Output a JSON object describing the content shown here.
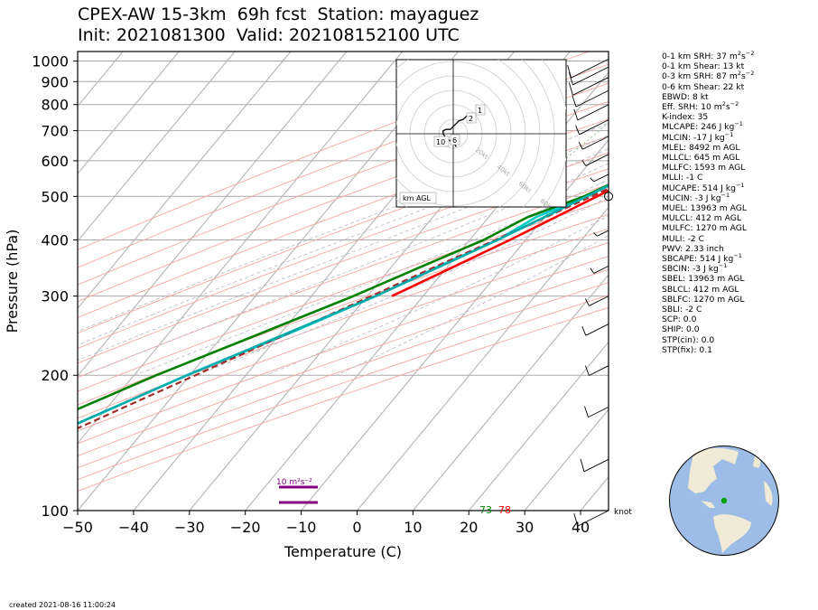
{
  "header": {
    "title_line1": "CPEX-AW 15-3km  69h fcst  Station: mayaguez",
    "title_line2": "Init: 2021081300  Valid: 202108152100 UTC"
  },
  "footer": {
    "created": "created 2021-08-16 11:00:24"
  },
  "chart_data": {
    "type": "line",
    "subtype": "skew-t log-p",
    "xlabel": "Temperature (C)",
    "ylabel": "Pressure (hPa)",
    "xlim": [
      -50,
      45
    ],
    "ylim": [
      1050,
      100
    ],
    "y_scale": "log",
    "x_ticks": [
      -50,
      -40,
      -30,
      -20,
      -10,
      0,
      10,
      20,
      30,
      40
    ],
    "x_tick_labels": [
      "−50",
      "−40",
      "−30",
      "−20",
      "−10",
      "0",
      "10",
      "20",
      "30",
      "40"
    ],
    "y_ticks": [
      100,
      200,
      300,
      400,
      500,
      600,
      700,
      800,
      900,
      1000
    ],
    "grid": true,
    "series": [
      {
        "color": "#ff0000",
        "pressure": [
          1012,
          1000,
          975,
          950,
          925,
          900,
          850,
          800,
          750,
          700,
          650,
          600,
          550,
          500,
          450,
          400,
          350,
          300
        ],
        "values": [
          27.5,
          25.2,
          23.7,
          23.0,
          22.0,
          20.5,
          16.9,
          13.4,
          11.2,
          8.5,
          5.9,
          3.2,
          0.1,
          -3.7,
          -8.0,
          -12.8,
          -18.7,
          -25.6
        ]
      },
      {
        "color": "#00cccc",
        "pressure": [
          1012,
          1000,
          975,
          950,
          925,
          900,
          850,
          800,
          750,
          700,
          650,
          600,
          550,
          500,
          450,
          400,
          350,
          300,
          250,
          200,
          150,
          120,
          100
        ],
        "values": [
          23.8,
          23.1,
          22.6,
          21.3,
          19.0,
          17.2,
          15.2,
          12.0,
          9.8,
          7.0,
          4.3,
          1.8,
          -1.5,
          -5.5,
          -11.5,
          -15.0,
          -21.5,
          -28.5,
          -38.0,
          -50.5,
          -65.0,
          -77.0,
          -85.0
        ]
      },
      {
        "color": "#008000",
        "pressure": [
          1012,
          1000,
          975,
          950,
          925,
          900,
          850,
          800,
          750,
          700,
          650,
          600,
          550,
          500,
          450,
          400,
          350,
          300,
          250,
          200,
          150,
          120,
          100
        ],
        "values": [
          23.0,
          22.5,
          21.5,
          20.0,
          17.7,
          16.5,
          15.0,
          11.9,
          9.6,
          6.8,
          4.1,
          1.7,
          -1.7,
          -6.0,
          -13.0,
          -17.5,
          -24.5,
          -32.5,
          -43.0,
          -56.0,
          -71.0,
          -81.0,
          -87.0
        ]
      },
      {
        "color": "#a52a2a",
        "dash": true,
        "pressure": [
          1012,
          1000,
          950,
          900,
          850,
          800,
          750,
          700,
          650,
          600,
          550,
          500,
          450,
          400,
          350,
          300,
          250,
          200,
          150,
          100
        ],
        "values": [
          27.5,
          26.3,
          24.3,
          22.2,
          19.9,
          17.4,
          14.6,
          11.4,
          7.9,
          4.1,
          -0.1,
          -4.7,
          -9.7,
          -15.4,
          -22.0,
          -29.3,
          -38.2,
          -49.0,
          -63.0,
          -80.0
        ]
      },
      {
        "color": "#00aaaa",
        "pressure": [
          900,
          850,
          800,
          750,
          700,
          600,
          500,
          400,
          300,
          200,
          150,
          120,
          100
        ],
        "values": [
          19.0,
          15.2,
          12.0,
          9.8,
          7.0,
          1.8,
          -5.5,
          -15.0,
          -28.5,
          -50.5,
          -65.0,
          -77.0,
          -85.0
        ]
      }
    ],
    "surface_labels": [
      {
        "text": "73",
        "color": "#008000"
      },
      {
        "text": "78",
        "color": "#ff0000"
      }
    ],
    "srh_bar_label": "10 m²s⁻²",
    "barb_unit_label": "knot",
    "hodograph": {
      "ring_labels": [
        "20kt",
        "40kt",
        "60kt",
        "80kt"
      ],
      "height_labels": [
        "1",
        "2",
        "6",
        "10"
      ],
      "legend": "km AGL",
      "trace_u_kt": [
        2,
        1.5,
        0,
        -2,
        -5,
        -7,
        -7,
        -5,
        -2,
        1,
        4,
        7,
        9,
        12
      ],
      "trace_v_kt": [
        -9,
        -8,
        -6,
        -5,
        -3,
        0,
        2,
        3,
        3,
        6,
        9,
        10,
        12,
        14
      ]
    }
  },
  "indices": [
    {
      "label": "0-1 km SRH: 37 m",
      "sup": "2",
      "rest": "s",
      "sup2": "−2"
    },
    {
      "label": "0-1 km Shear: 13 kt"
    },
    {
      "label": "0-3 km SRH: 87 m",
      "sup": "2",
      "rest": "s",
      "sup2": "−2"
    },
    {
      "label": "0-6 km Shear: 22 kt"
    },
    {
      "label": "EBWD: 8 kt"
    },
    {
      "label": "Eff. SRH: 10 m",
      "sup": "2",
      "rest": "s",
      "sup2": "−2"
    },
    {
      "label": "K-index: 35"
    },
    {
      "label": "MLCAPE: 246 J kg",
      "sup2": "−1"
    },
    {
      "label": "MLCIN: -17 J kg",
      "sup2": "−1"
    },
    {
      "label": "MLEL: 8492 m AGL"
    },
    {
      "label": "MLLCL: 645 m AGL"
    },
    {
      "label": "MLLFC: 1593 m AGL"
    },
    {
      "label": "MLLI: -1 C"
    },
    {
      "label": "MUCAPE: 514 J kg",
      "sup2": "−1"
    },
    {
      "label": "MUCIN: -3 J kg",
      "sup2": "−1"
    },
    {
      "label": "MUEL: 13963 m AGL"
    },
    {
      "label": "MULCL: 412 m AGL"
    },
    {
      "label": "MULFC: 1270 m AGL"
    },
    {
      "label": "MULI: -2 C"
    },
    {
      "label": "PWV: 2.33 inch"
    },
    {
      "label": "SBCAPE: 514 J kg",
      "sup2": "−1"
    },
    {
      "label": "SBCIN: -3 J kg",
      "sup2": "−1"
    },
    {
      "label": "SBEL: 13963 m AGL"
    },
    {
      "label": "SBLCL: 412 m AGL"
    },
    {
      "label": "SBLFC: 1270 m AGL"
    },
    {
      "label": "SBLI: -2 C"
    },
    {
      "label": "SCP: 0.0"
    },
    {
      "label": "SHIP: 0.0"
    },
    {
      "label": "STP(cin): 0.0"
    },
    {
      "label": "STP(fix): 0.1"
    }
  ],
  "colors": {
    "ocean": "#9ebde6",
    "land": "#efebd6",
    "station_marker": "#00a000",
    "srh_bar": "#800080"
  }
}
